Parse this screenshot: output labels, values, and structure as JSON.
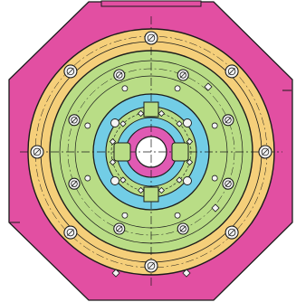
{
  "drawing": {
    "subject": "",
    "colors": {
      "background": "#ffffff",
      "plate": "#e24fa2",
      "outer_ring": "#f5cf7a",
      "middle_ring": "#b9dd86",
      "inner_ring": "#72cde6",
      "core_ring": "#e05ab3",
      "bore": "#ffffff",
      "line": "#1b1b1b",
      "bolt_fill": "#f4f4f4"
    },
    "features": {
      "outer_ring_bolts": 8,
      "middle_ring_bolts": 8,
      "inner_ring_fasteners": 12,
      "keyway_blocks": 2,
      "side_lugs": 2,
      "center_bore": "through"
    },
    "icons": {
      "bolt": "bolt-head-icon",
      "fastener": "small-fastener-icon"
    }
  }
}
